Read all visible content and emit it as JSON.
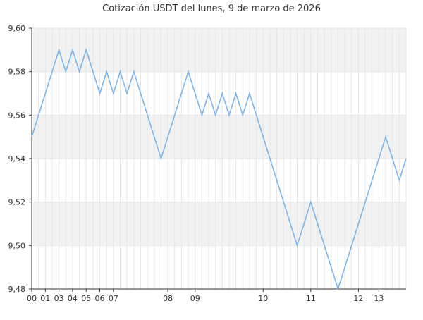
{
  "chart_data": {
    "type": "line",
    "title": "Cotización USDT del lunes, 9 de marzo de 2026",
    "xlabel": "",
    "ylabel": "",
    "ylim": [
      9.48,
      9.6
    ],
    "xlim": [
      0,
      55
    ],
    "yticks": [
      9.48,
      9.5,
      9.52,
      9.54,
      9.56,
      9.58,
      9.6
    ],
    "ytick_labels": [
      "9,48",
      "9,50",
      "9,52",
      "9,54",
      "9,56",
      "9,58",
      "9,60"
    ],
    "xticks": [
      {
        "x": 0,
        "label": "00"
      },
      {
        "x": 2,
        "label": "01"
      },
      {
        "x": 4,
        "label": "03"
      },
      {
        "x": 6,
        "label": "04"
      },
      {
        "x": 8,
        "label": "05"
      },
      {
        "x": 10,
        "label": "06"
      },
      {
        "x": 12,
        "label": "07"
      },
      {
        "x": 20,
        "label": "08"
      },
      {
        "x": 24,
        "label": "09"
      },
      {
        "x": 34,
        "label": "10"
      },
      {
        "x": 41,
        "label": "11"
      },
      {
        "x": 48,
        "label": "12"
      },
      {
        "x": 51,
        "label": "13"
      }
    ],
    "grid": true,
    "series": [
      {
        "values": [
          9.55,
          9.56,
          9.57,
          9.58,
          9.59,
          9.58,
          9.59,
          9.58,
          9.59,
          9.58,
          9.57,
          9.58,
          9.57,
          9.58,
          9.57,
          9.58,
          9.57,
          9.56,
          9.55,
          9.54,
          9.55,
          9.56,
          9.57,
          9.58,
          9.57,
          9.56,
          9.57,
          9.56,
          9.57,
          9.56,
          9.57,
          9.56,
          9.57,
          9.56,
          9.55,
          9.54,
          9.53,
          9.52,
          9.51,
          9.5,
          9.51,
          9.52,
          9.51,
          9.5,
          9.49,
          9.48,
          9.49,
          9.5,
          9.51,
          9.52,
          9.53,
          9.54,
          9.55,
          9.54,
          9.53,
          9.54
        ]
      }
    ],
    "colors": {
      "line": "#7cb5ec",
      "band": "#f2f2f2",
      "grid": "#e6e6e6",
      "axis": "#333333"
    }
  }
}
